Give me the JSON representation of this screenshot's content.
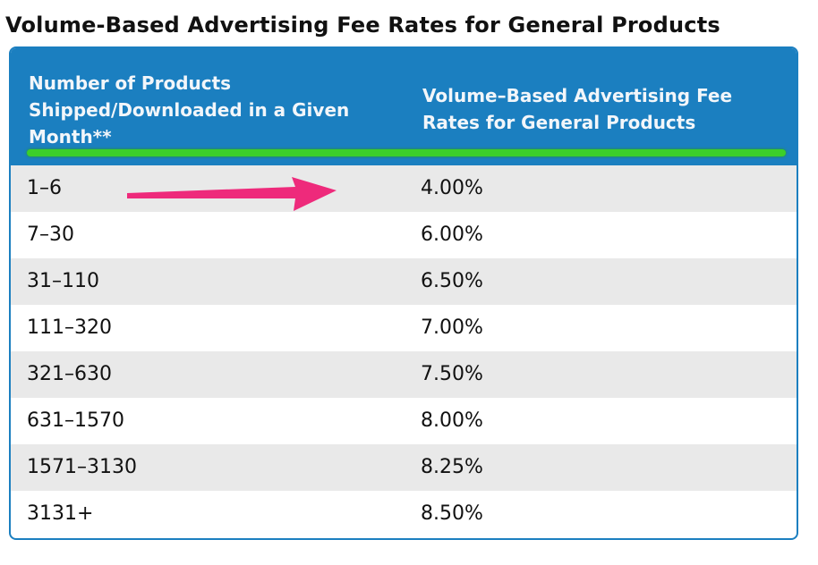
{
  "title": "Volume-Based Advertising Fee Rates for General Products",
  "table": {
    "headers": [
      "Number of Products Shipped/Downloaded in a Given Month**",
      "Volume–Based Advertising Fee Rates for General Products"
    ],
    "rows": [
      [
        "1–6",
        "4.00%"
      ],
      [
        "7–30",
        "6.00%"
      ],
      [
        "31–110",
        "6.50%"
      ],
      [
        "111–320",
        "7.00%"
      ],
      [
        "321–630",
        "7.50%"
      ],
      [
        "631–1570",
        "8.00%"
      ],
      [
        "1571–3130",
        "8.25%"
      ],
      [
        "3131+",
        "8.50%"
      ]
    ]
  },
  "colors": {
    "header": "#1b7fc0",
    "accent_bar": "#3ccf2a",
    "arrow": "#ee2a7b"
  },
  "annotation": {
    "icon": "arrow-right-icon",
    "points_to_row": 0
  }
}
